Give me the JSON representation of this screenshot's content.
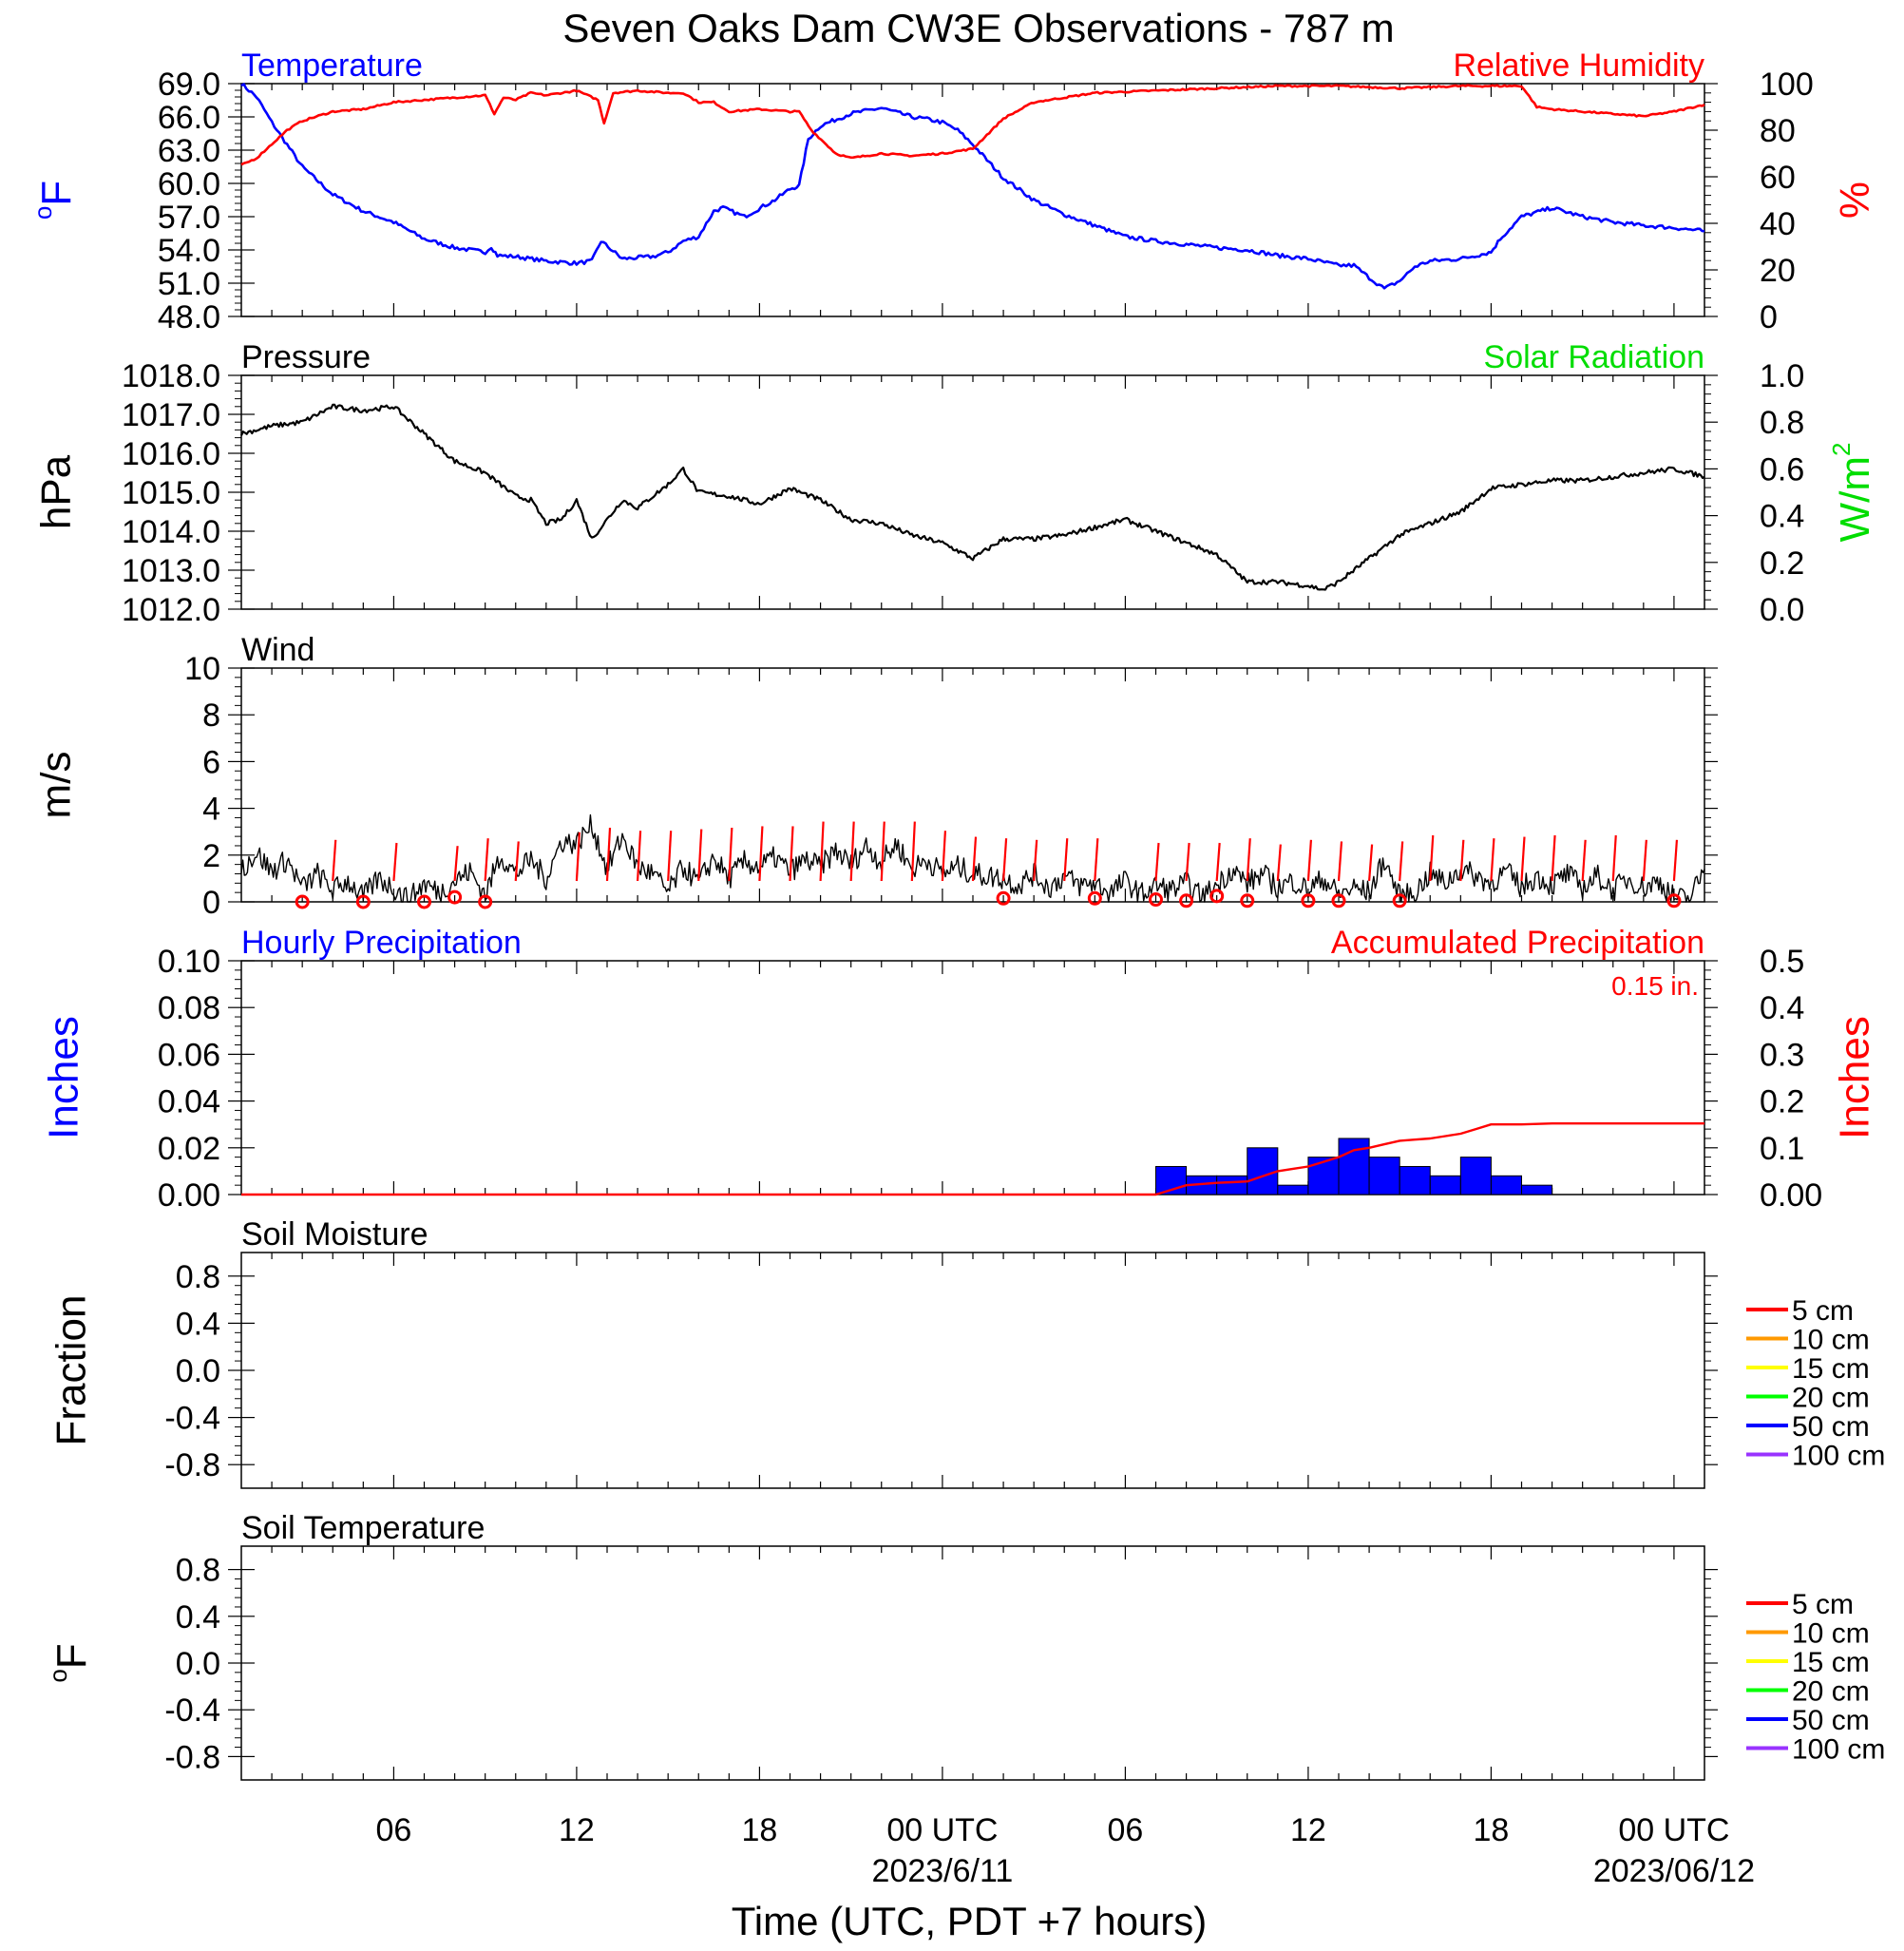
{
  "title": "Seven Oaks Dam CW3E Observations - 787 m",
  "colors": {
    "temperature": "#0000ff",
    "humidity": "#ff0000",
    "pressure": "#000000",
    "solar": "#00dd00",
    "wind": "#000000",
    "wind_barb": "#ff0000",
    "hourly_precip": "#0000ff",
    "accum_precip": "#ff0000",
    "soil": [
      "#ff0000",
      "#ff9900",
      "#ffff00",
      "#00ff00",
      "#0000ff",
      "#9933ff"
    ]
  },
  "x_axis": {
    "label": "Time (UTC, PDT +7 hours)",
    "range_hours": [
      0,
      48
    ],
    "tick_labels": [
      {
        "hour": 5,
        "text": "06"
      },
      {
        "hour": 11,
        "text": "12"
      },
      {
        "hour": 17,
        "text": "18"
      },
      {
        "hour": 23,
        "text": "00 UTC"
      },
      {
        "hour": 29,
        "text": "06"
      },
      {
        "hour": 35,
        "text": "12"
      },
      {
        "hour": 41,
        "text": "18"
      },
      {
        "hour": 47,
        "text": "00 UTC"
      }
    ],
    "dates": [
      {
        "hour": 23,
        "text": "2023/6/11"
      },
      {
        "hour": 47,
        "text": "2023/06/12"
      }
    ]
  },
  "chart_data": [
    {
      "type": "line",
      "name": "temperature-humidity",
      "left_title": "Temperature",
      "right_title": "Relative Humidity",
      "ylabel_left": "oF",
      "ylabel_right": "%",
      "ylim_left": [
        48,
        69
      ],
      "ylim_right": [
        0,
        100
      ],
      "yticks_left": [
        "48.0",
        "51.0",
        "54.0",
        "57.0",
        "60.0",
        "63.0",
        "66.0",
        "69.0"
      ],
      "yticks_right": [
        "0",
        "20",
        "40",
        "60",
        "80",
        "100"
      ],
      "series": [
        {
          "name": "Temperature",
          "axis": "left",
          "x": [
            0,
            0.5,
            1,
            1.5,
            2,
            3,
            4,
            5,
            6,
            7,
            8,
            8.2,
            8.4,
            9,
            10,
            11,
            11.5,
            11.8,
            12.5,
            13.5,
            14,
            14.5,
            15,
            15.5,
            15.8,
            16.5,
            17.5,
            18,
            18.3,
            18.6,
            19,
            20,
            21,
            22,
            22.5,
            23,
            23.5,
            24,
            25,
            26,
            27,
            28,
            29,
            30,
            31,
            32,
            33,
            34,
            35,
            36,
            36.5,
            37,
            37.5,
            38,
            38.5,
            39,
            40,
            41,
            41.3,
            42,
            43,
            44,
            45,
            46,
            47,
            48
          ],
          "values": [
            69,
            67.8,
            65.5,
            63.5,
            61.5,
            59,
            57.5,
            56.5,
            55,
            54.2,
            53.8,
            54.3,
            53.5,
            53.4,
            53,
            52.8,
            53,
            54.8,
            53.2,
            53.4,
            53.8,
            54.8,
            55.2,
            57.5,
            57.8,
            57,
            58.5,
            59.5,
            59.8,
            64,
            65.2,
            66.3,
            66.8,
            66,
            65.8,
            65.5,
            64.8,
            63.5,
            60.5,
            58.5,
            57.2,
            56.2,
            55.2,
            54.8,
            54.5,
            54.2,
            54,
            53.5,
            53.2,
            52.6,
            52.6,
            51.5,
            50.5,
            51.2,
            52.5,
            53,
            53.2,
            53.8,
            55,
            57,
            57.8,
            57,
            56.5,
            56.2,
            56,
            55.7
          ]
        },
        {
          "name": "Relative Humidity",
          "axis": "right",
          "x": [
            0,
            0.5,
            1,
            1.5,
            2,
            3,
            4,
            5,
            6,
            7,
            8,
            8.3,
            8.6,
            9,
            9.5,
            10,
            11,
            11.7,
            11.9,
            12.2,
            13,
            14,
            14.5,
            15,
            15.5,
            16,
            17,
            18,
            18.3,
            18.7,
            19.5,
            20,
            21,
            22,
            23,
            24,
            25,
            26,
            27,
            28,
            30,
            32,
            34,
            36,
            38,
            40,
            42,
            42.5,
            43,
            44,
            45,
            46,
            47,
            48
          ],
          "values": [
            65,
            68,
            74,
            80,
            84,
            88,
            89,
            92,
            93,
            94,
            95,
            87,
            94,
            93,
            96,
            95,
            97,
            93,
            83,
            96,
            97,
            96,
            96,
            92,
            92,
            88,
            89,
            88,
            88,
            80,
            70,
            68,
            70,
            69,
            70,
            72,
            85,
            92,
            94,
            96,
            97,
            98,
            99,
            99,
            98,
            99,
            99,
            90,
            89,
            88,
            87,
            86,
            88,
            91
          ]
        }
      ]
    },
    {
      "type": "line",
      "name": "pressure",
      "left_title": "Pressure",
      "right_title": "Solar Radiation",
      "ylabel_left": "hPa",
      "ylabel_right": "W/m2",
      "ylim_left": [
        1012,
        1018
      ],
      "ylim_right": [
        0,
        1
      ],
      "yticks_left": [
        "1012.0",
        "1013.0",
        "1014.0",
        "1015.0",
        "1016.0",
        "1017.0",
        "1018.0"
      ],
      "yticks_right": [
        "0.0",
        "0.2",
        "0.4",
        "0.6",
        "0.8",
        "1.0"
      ],
      "series": [
        {
          "name": "Pressure",
          "axis": "left",
          "x": [
            0,
            1,
            2,
            3,
            4,
            5,
            6,
            7,
            8,
            9,
            9.5,
            10,
            10.5,
            11,
            11.5,
            12,
            12.5,
            13,
            14,
            14.5,
            15,
            16,
            17,
            18,
            19,
            20,
            21,
            22,
            23,
            24,
            25,
            26,
            27,
            28,
            29,
            30,
            31,
            32,
            33,
            34,
            35,
            35.5,
            36,
            37,
            38,
            39,
            40,
            41,
            42,
            43,
            44,
            45,
            46,
            47,
            48
          ],
          "values": [
            1016.5,
            1016.7,
            1016.8,
            1017.2,
            1017.1,
            1017.2,
            1016.5,
            1015.8,
            1015.5,
            1014.9,
            1014.8,
            1014.2,
            1014.3,
            1014.8,
            1013.8,
            1014.3,
            1014.8,
            1014.6,
            1015.2,
            1015.6,
            1015,
            1014.9,
            1014.7,
            1015.1,
            1014.8,
            1014.3,
            1014.2,
            1013.9,
            1013.7,
            1013.3,
            1013.8,
            1013.8,
            1013.9,
            1014.1,
            1014.3,
            1014,
            1013.7,
            1013.4,
            1012.7,
            1012.7,
            1012.6,
            1012.5,
            1012.7,
            1013.3,
            1013.9,
            1014.2,
            1014.5,
            1015.1,
            1015.2,
            1015.3,
            1015.3,
            1015.4,
            1015.5,
            1015.6,
            1015.4
          ]
        }
      ]
    },
    {
      "type": "line",
      "name": "wind",
      "left_title": "Wind",
      "ylabel_left": "m/s",
      "ylim_left": [
        0,
        10
      ],
      "yticks_left": [
        "0",
        "2",
        "4",
        "6",
        "8",
        "10"
      ],
      "series": [
        {
          "name": "Wind",
          "axis": "left",
          "x": [
            0,
            0.5,
            1,
            1.5,
            2,
            2.5,
            3,
            3.5,
            4,
            4.5,
            5,
            5.5,
            6,
            6.5,
            7,
            7.5,
            8,
            8.5,
            9,
            9.5,
            10,
            10.5,
            11,
            11.5,
            12,
            12.5,
            13,
            13.5,
            14,
            14.5,
            15,
            15.5,
            16,
            16.5,
            17,
            17.5,
            18,
            18.5,
            19,
            19.5,
            20,
            20.5,
            21,
            21.5,
            22,
            22.5,
            23,
            23.5,
            24,
            24.5,
            25,
            25.5,
            26,
            26.5,
            27,
            27.5,
            28,
            28.5,
            29,
            29.5,
            30,
            30.5,
            31,
            31.5,
            32,
            32.5,
            33,
            33.5,
            34,
            34.5,
            35,
            35.5,
            36,
            36.5,
            37,
            37.5,
            38,
            38.5,
            39,
            39.5,
            40,
            40.5,
            41,
            41.5,
            42,
            42.5,
            43,
            43.5,
            44,
            44.5,
            45,
            45.5,
            46,
            46.5,
            47,
            47.5,
            48
          ],
          "values": [
            1.4,
            2.1,
            1.3,
            1.8,
            0.6,
            1.2,
            0.5,
            0.9,
            0.2,
            1,
            0.6,
            0.1,
            0.8,
            0.4,
            0.9,
            1.3,
            0.3,
            2,
            1.2,
            1.8,
            1,
            2.6,
            2.5,
            3.3,
            1.4,
            2.8,
            1.5,
            1.2,
            0.4,
            1.5,
            0.8,
            1.9,
            1,
            1.7,
            1.5,
            1.9,
            1.3,
            1.8,
            1.5,
            2.2,
            1.6,
            2.4,
            1.7,
            2.5,
            1.4,
            1.8,
            1.2,
            1.5,
            1.2,
            1.1,
            1,
            0.7,
            1.2,
            0.6,
            1.1,
            0.7,
            0.8,
            0.4,
            0.9,
            0.3,
            0.7,
            0.5,
            0.8,
            0.2,
            0.7,
            1.4,
            0.8,
            1.2,
            0.6,
            0.9,
            0.5,
            1,
            0.3,
            0.6,
            0.4,
            1.8,
            0.2,
            0.4,
            1.2,
            0.8,
            1.4,
            1.1,
            0.8,
            1.3,
            0.6,
            1.1,
            0.7,
            1.2,
            0.6,
            1.1,
            0.5,
            1,
            0.6,
            0.9,
            0.2,
            0.1,
            1.4
          ]
        },
        {
          "name": "Wind barbs",
          "axis": "left",
          "type": "barbs",
          "x": [
            3,
            5,
            7,
            8,
            9,
            11,
            12,
            13,
            14,
            15,
            16,
            17,
            18,
            19,
            20,
            21,
            22,
            23,
            24,
            25,
            26,
            27,
            28,
            30,
            31,
            32,
            33,
            34,
            35,
            36,
            37,
            38,
            39,
            40,
            41,
            42,
            43,
            44,
            45,
            46,
            47
          ],
          "values": [
            1.2,
            1,
            0.8,
            1.3,
            1.1,
            1.7,
            2,
            1.8,
            1.8,
            1.9,
            2,
            2.1,
            2.1,
            2.4,
            2.4,
            2.4,
            2.4,
            1.8,
            1.4,
            1.3,
            1.2,
            1.3,
            1.3,
            1,
            1,
            1,
            1.3,
            0.9,
            1.2,
            1.1,
            0.9,
            1.1,
            1.5,
            1.2,
            1.3,
            1.4,
            1.5,
            1.2,
            1.5,
            1.2,
            1.2
          ]
        },
        {
          "name": "Calm",
          "axis": "left",
          "type": "circles",
          "x": [
            2,
            4,
            6,
            7,
            8,
            25,
            28,
            30,
            31,
            32,
            33,
            35,
            36,
            38,
            47
          ],
          "values": [
            0,
            0,
            0,
            0.2,
            0,
            0.15,
            0.15,
            0.1,
            0.05,
            0.25,
            0.05,
            0.05,
            0.05,
            0.05,
            0.05
          ]
        }
      ]
    },
    {
      "type": "bar",
      "name": "precipitation",
      "left_title": "Hourly Precipitation",
      "right_title": "Accumulated Precipitation",
      "annotation": "0.15 in.",
      "ylabel_left": "Inches",
      "ylabel_right": "Inches",
      "ylim_left": [
        0,
        0.1
      ],
      "ylim_right": [
        0,
        0.5
      ],
      "yticks_left": [
        "0.00",
        "0.02",
        "0.04",
        "0.06",
        "0.08",
        "0.10"
      ],
      "yticks_right": [
        "0.00",
        "0.1",
        "0.2",
        "0.3",
        "0.4",
        "0.5"
      ],
      "series": [
        {
          "name": "Hourly Precipitation",
          "axis": "left",
          "type": "bar",
          "x": [
            30,
            31,
            32,
            33,
            34,
            35,
            36,
            37,
            38,
            39,
            40,
            41,
            42
          ],
          "values": [
            0.012,
            0.008,
            0.008,
            0.02,
            0.004,
            0.016,
            0.024,
            0.016,
            0.012,
            0.008,
            0.016,
            0.008,
            0.004
          ]
        },
        {
          "name": "Accumulated Precipitation",
          "axis": "right",
          "type": "line",
          "x": [
            0,
            30,
            30.5,
            31,
            32,
            33,
            34,
            35,
            36,
            36.5,
            37,
            38,
            39,
            40,
            40.5,
            41,
            42,
            43,
            48
          ],
          "values": [
            0,
            0,
            0.01,
            0.02,
            0.025,
            0.028,
            0.05,
            0.06,
            0.08,
            0.095,
            0.1,
            0.115,
            0.12,
            0.13,
            0.14,
            0.15,
            0.15,
            0.152,
            0.152
          ]
        }
      ]
    },
    {
      "type": "line",
      "name": "soil-moisture",
      "left_title": "Soil Moisture",
      "ylabel_left": "Fraction",
      "ylim_left": [
        -1,
        1
      ],
      "yticks_left": [
        "-0.8",
        "-0.4",
        "0.0",
        "0.4",
        "0.8"
      ],
      "legend": [
        "5 cm",
        "10 cm",
        "15 cm",
        "20 cm",
        "50 cm",
        "100 cm"
      ],
      "series": []
    },
    {
      "type": "line",
      "name": "soil-temperature",
      "left_title": "Soil Temperature",
      "ylabel_left": "oF",
      "ylim_left": [
        -1,
        1
      ],
      "yticks_left": [
        "-0.8",
        "-0.4",
        "0.0",
        "0.4",
        "0.8"
      ],
      "legend": [
        "5 cm",
        "10 cm",
        "15 cm",
        "20 cm",
        "50 cm",
        "100 cm"
      ],
      "series": []
    }
  ]
}
